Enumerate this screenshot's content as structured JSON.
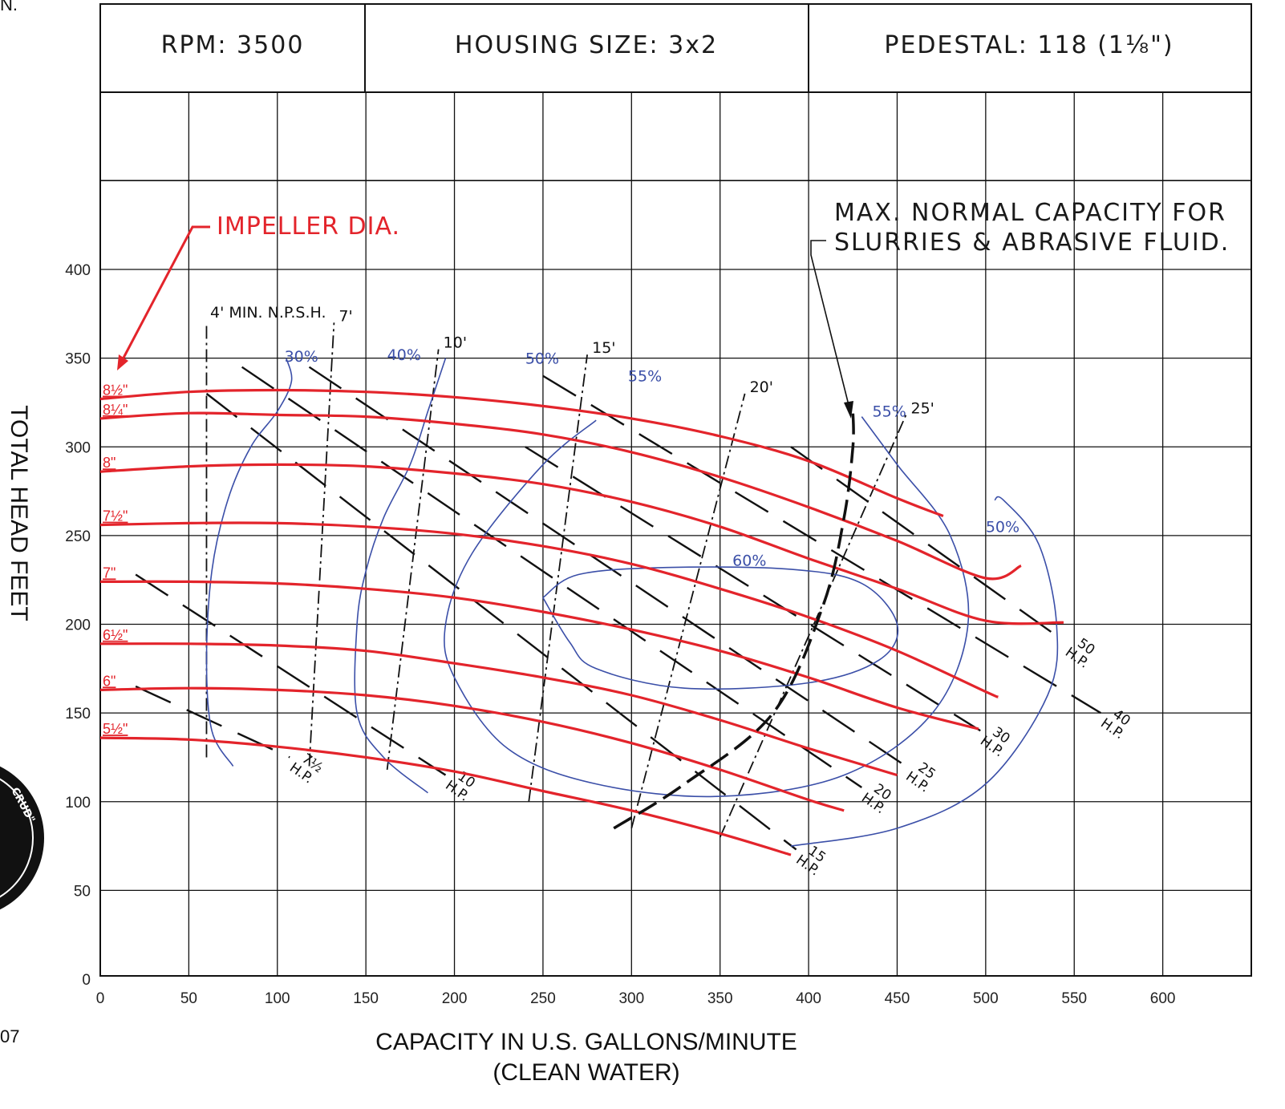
{
  "header": {
    "rpm": "RPM:  3500",
    "housing": "HOUSING  SIZE:  3x2",
    "pedestal": "PEDESTAL:  118  (1⅛\")"
  },
  "edge_text": {
    "top_left": "N.",
    "bottom_left": "07",
    "logo": "CRUD\""
  },
  "colors": {
    "impeller": "#e3242b",
    "efficiency": "#3b4fa8",
    "grid": "#111111"
  },
  "annotations": {
    "impeller_label": "IMPELLER  DIA.",
    "max_capacity_line1": "MAX.  NORMAL  CAPACITY  FOR",
    "max_capacity_line2": "SLURRIES  &  ABRASIVE  FLUID.",
    "npsh_title": "4'  MIN.  N.P.S.H."
  },
  "chart_data": {
    "type": "line",
    "xlabel": "CAPACITY IN U.S. GALLONS/MINUTE",
    "xlabel2": "(CLEAN WATER)",
    "ylabel": "TOTAL HEAD FEET",
    "xlim": [
      0,
      650
    ],
    "ylim": [
      0,
      400
    ],
    "x_ticks": [
      "0",
      "50",
      "100",
      "150",
      "200",
      "250",
      "300",
      "350",
      "400",
      "450",
      "500",
      "550",
      "600"
    ],
    "y_ticks": [
      "0",
      "50",
      "100",
      "150",
      "200",
      "250",
      "300",
      "350",
      "400"
    ],
    "grid": true,
    "impeller_curves": [
      {
        "name": "8½\"",
        "points": [
          [
            0,
            327
          ],
          [
            50,
            331
          ],
          [
            100,
            332
          ],
          [
            150,
            331
          ],
          [
            200,
            328
          ],
          [
            250,
            323
          ],
          [
            300,
            316
          ],
          [
            350,
            306
          ],
          [
            400,
            292
          ],
          [
            450,
            271
          ],
          [
            476,
            261
          ]
        ]
      },
      {
        "name": "8¼\"",
        "points": [
          [
            0,
            316
          ],
          [
            50,
            319
          ],
          [
            100,
            318
          ],
          [
            150,
            317
          ],
          [
            200,
            313
          ],
          [
            250,
            307
          ],
          [
            300,
            297
          ],
          [
            350,
            283
          ],
          [
            400,
            266
          ],
          [
            450,
            247
          ],
          [
            500,
            226
          ],
          [
            520,
            233
          ]
        ]
      },
      {
        "name": "8\"",
        "points": [
          [
            0,
            286
          ],
          [
            50,
            289
          ],
          [
            100,
            290
          ],
          [
            150,
            289
          ],
          [
            200,
            285
          ],
          [
            250,
            279
          ],
          [
            300,
            269
          ],
          [
            350,
            255
          ],
          [
            400,
            237
          ],
          [
            450,
            220
          ],
          [
            500,
            202
          ],
          [
            544,
            201
          ]
        ]
      },
      {
        "name": "7½\"",
        "points": [
          [
            0,
            256
          ],
          [
            50,
            257
          ],
          [
            100,
            257
          ],
          [
            150,
            255
          ],
          [
            200,
            251
          ],
          [
            250,
            244
          ],
          [
            300,
            234
          ],
          [
            350,
            220
          ],
          [
            400,
            204
          ],
          [
            450,
            185
          ],
          [
            500,
            162
          ],
          [
            507,
            159
          ]
        ]
      },
      {
        "name": "7\"",
        "points": [
          [
            0,
            224
          ],
          [
            50,
            224
          ],
          [
            100,
            223
          ],
          [
            150,
            220
          ],
          [
            200,
            215
          ],
          [
            250,
            207
          ],
          [
            300,
            197
          ],
          [
            350,
            185
          ],
          [
            400,
            170
          ],
          [
            450,
            153
          ],
          [
            496,
            141
          ]
        ]
      },
      {
        "name": "6½\"",
        "points": [
          [
            0,
            189
          ],
          [
            50,
            189
          ],
          [
            100,
            188
          ],
          [
            150,
            185
          ],
          [
            200,
            178
          ],
          [
            250,
            170
          ],
          [
            300,
            160
          ],
          [
            350,
            146
          ],
          [
            400,
            130
          ],
          [
            450,
            115
          ]
        ]
      },
      {
        "name": "6\"",
        "points": [
          [
            0,
            163
          ],
          [
            50,
            164
          ],
          [
            100,
            163
          ],
          [
            150,
            160
          ],
          [
            200,
            154
          ],
          [
            250,
            145
          ],
          [
            300,
            133
          ],
          [
            350,
            118
          ],
          [
            400,
            101
          ],
          [
            420,
            95
          ]
        ]
      },
      {
        "name": "5½\"",
        "points": [
          [
            0,
            136
          ],
          [
            50,
            135
          ],
          [
            100,
            131
          ],
          [
            150,
            125
          ],
          [
            200,
            117
          ],
          [
            250,
            106
          ],
          [
            300,
            95
          ],
          [
            350,
            82
          ],
          [
            390,
            70
          ]
        ]
      }
    ],
    "efficiency_contours": [
      {
        "name": "30%",
        "points": [
          [
            75,
            120
          ],
          [
            63,
            140
          ],
          [
            60,
            180
          ],
          [
            63,
            230
          ],
          [
            72,
            270
          ],
          [
            85,
            300
          ],
          [
            100,
            320
          ],
          [
            108,
            337
          ],
          [
            105,
            350
          ]
        ]
      },
      {
        "name": "40%",
        "points": [
          [
            185,
            105
          ],
          [
            160,
            125
          ],
          [
            145,
            150
          ],
          [
            145,
            200
          ],
          [
            150,
            230
          ],
          [
            160,
            260
          ],
          [
            175,
            290
          ],
          [
            185,
            320
          ],
          [
            195,
            350
          ]
        ]
      },
      {
        "name": "50%",
        "points": [
          [
            390,
            75
          ],
          [
            450,
            85
          ],
          [
            500,
            110
          ],
          [
            535,
            160
          ],
          [
            540,
            200
          ],
          [
            530,
            245
          ],
          [
            510,
            270
          ],
          [
            505,
            270
          ]
        ]
      },
      {
        "name": "55%",
        "points": [
          [
            430,
            317
          ],
          [
            450,
            290
          ],
          [
            480,
            250
          ],
          [
            490,
            200
          ],
          [
            470,
            150
          ],
          [
            420,
            115
          ],
          [
            350,
            103
          ],
          [
            280,
            110
          ],
          [
            230,
            130
          ],
          [
            200,
            170
          ],
          [
            195,
            200
          ],
          [
            210,
            240
          ],
          [
            250,
            290
          ],
          [
            280,
            315
          ]
        ]
      },
      {
        "name": "60%",
        "points": [
          [
            250,
            215
          ],
          [
            270,
            228
          ],
          [
            320,
            232
          ],
          [
            390,
            231
          ],
          [
            430,
            223
          ],
          [
            450,
            200
          ],
          [
            440,
            180
          ],
          [
            400,
            167
          ],
          [
            330,
            164
          ],
          [
            280,
            175
          ],
          [
            265,
            190
          ],
          [
            250,
            215
          ]
        ]
      }
    ],
    "npsh_lines": [
      {
        "name": "4'",
        "x": [
          60,
          60
        ],
        "y": [
          125,
          370
        ]
      },
      {
        "name": "7'",
        "x": [
          118,
          132
        ],
        "y": [
          120,
          370
        ]
      },
      {
        "name": "10'",
        "x": [
          162,
          191
        ],
        "y": [
          118,
          355
        ]
      },
      {
        "name": "15'",
        "x": [
          242,
          275
        ],
        "y": [
          100,
          352
        ]
      },
      {
        "name": "20'",
        "x": [
          300,
          364
        ],
        "y": [
          85,
          330
        ]
      },
      {
        "name": "25'",
        "x": [
          350,
          455
        ],
        "y": [
          80,
          318
        ]
      }
    ],
    "hp_lines": [
      {
        "name": "7½ H.P.",
        "start": [
          20,
          165
        ],
        "end": [
          107,
          125
        ]
      },
      {
        "name": "10 H.P.",
        "start": [
          20,
          228
        ],
        "end": [
          195,
          115
        ]
      },
      {
        "name": "15 H.P.",
        "start": [
          60,
          330
        ],
        "end": [
          393,
          73
        ]
      },
      {
        "name": "20 H.P.",
        "start": [
          80,
          345
        ],
        "end": [
          430,
          108
        ]
      },
      {
        "name": "25 H.P.",
        "start": [
          118,
          345
        ],
        "end": [
          455,
          120
        ]
      },
      {
        "name": "30 H.P.",
        "start": [
          240,
          300
        ],
        "end": [
          497,
          140
        ]
      },
      {
        "name": "40 H.P.",
        "start": [
          250,
          340
        ],
        "end": [
          565,
          150
        ]
      },
      {
        "name": "50 H.P.",
        "start": [
          390,
          300
        ],
        "end": [
          545,
          190
        ]
      }
    ],
    "max_capacity_curve": {
      "points": [
        [
          290,
          85
        ],
        [
          330,
          110
        ],
        [
          380,
          150
        ],
        [
          408,
          210
        ],
        [
          420,
          260
        ],
        [
          425,
          300
        ],
        [
          425,
          320
        ]
      ]
    }
  }
}
